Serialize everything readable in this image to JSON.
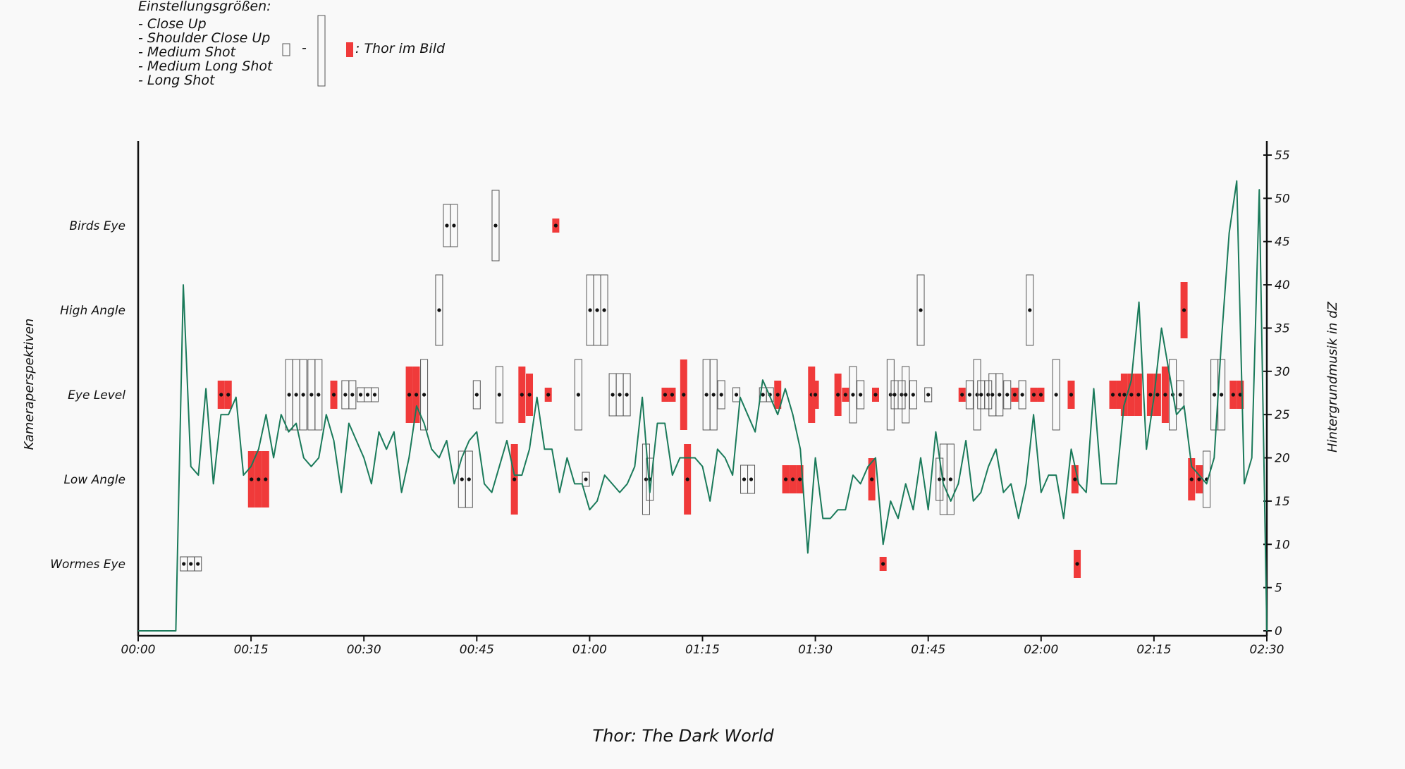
{
  "chart_data": {
    "type": "timeline+line",
    "title": "Thor: The Dark World",
    "ylabel_left": "Kameraperspektiven",
    "ylabel_right": "Hintergrundmusik in dZ",
    "categories": [
      "Wormes Eye",
      "Low Angle",
      "Eye Level",
      "High Angle",
      "Birds Eye"
    ],
    "x_ticks": [
      "00:00",
      "00:15",
      "00:30",
      "00:45",
      "01:00",
      "01:15",
      "01:30",
      "01:45",
      "02:00",
      "02:15",
      "02:30"
    ],
    "x_range_min": [
      0,
      150
    ],
    "y_right_range": [
      0,
      55
    ],
    "y_right_ticks": [
      0,
      5,
      10,
      15,
      20,
      25,
      30,
      35,
      40,
      45,
      50,
      55
    ],
    "legend": {
      "title": "Einstellungsgrößen:",
      "sizes": [
        "- Close Up",
        "- Shoulder Close Up",
        "- Medium Shot",
        "- Medium Long Shot",
        "- Long Shot"
      ],
      "dash": "-",
      "thor_label": ": Thor im Bild"
    },
    "colors": {
      "thor": "#f03a3a",
      "music": "#1a7a5a",
      "box_stroke": "#555555",
      "axis": "#111111"
    },
    "size_scale": {
      "1": "Close Up",
      "2": "Shoulder Close Up",
      "3": "Medium Shot",
      "4": "Medium Long Shot",
      "5": "Long Shot"
    },
    "shots": [
      {
        "t": 7.0,
        "cat": "Wormes Eye",
        "size": 1,
        "n": 3,
        "thor": false
      },
      {
        "t": 11.5,
        "cat": "Eye Level",
        "size": 2,
        "n": 2,
        "thor": true
      },
      {
        "t": 16.0,
        "cat": "Low Angle",
        "size": 4,
        "n": 3,
        "thor": true
      },
      {
        "t": 21.0,
        "cat": "Eye Level",
        "size": 5,
        "n": 3,
        "thor": false
      },
      {
        "t": 23.5,
        "cat": "Eye Level",
        "size": 5,
        "n": 2,
        "thor": false
      },
      {
        "t": 26.0,
        "cat": "Eye Level",
        "size": 2,
        "n": 1,
        "thor": true
      },
      {
        "t": 28.0,
        "cat": "Eye Level",
        "size": 2,
        "n": 2,
        "thor": false
      },
      {
        "t": 30.5,
        "cat": "Eye Level",
        "size": 1,
        "n": 3,
        "thor": false
      },
      {
        "t": 36.5,
        "cat": "Eye Level",
        "size": 4,
        "n": 2,
        "thor": true
      },
      {
        "t": 38.0,
        "cat": "Eye Level",
        "size": 5,
        "n": 1,
        "thor": false
      },
      {
        "t": 40.0,
        "cat": "High Angle",
        "size": 5,
        "n": 1,
        "thor": false
      },
      {
        "t": 41.5,
        "cat": "Birds Eye",
        "size": 3,
        "n": 2,
        "thor": false
      },
      {
        "t": 43.5,
        "cat": "Low Angle",
        "size": 4,
        "n": 2,
        "thor": false
      },
      {
        "t": 45.0,
        "cat": "Eye Level",
        "size": 2,
        "n": 1,
        "thor": false
      },
      {
        "t": 47.5,
        "cat": "Birds Eye",
        "size": 5,
        "n": 1,
        "thor": false
      },
      {
        "t": 48.0,
        "cat": "Eye Level",
        "size": 4,
        "n": 1,
        "thor": false
      },
      {
        "t": 50.0,
        "cat": "Low Angle",
        "size": 5,
        "n": 1,
        "thor": true
      },
      {
        "t": 51.0,
        "cat": "Eye Level",
        "size": 4,
        "n": 1,
        "thor": true
      },
      {
        "t": 52.0,
        "cat": "Eye Level",
        "size": 3,
        "n": 1,
        "thor": true
      },
      {
        "t": 54.5,
        "cat": "Eye Level",
        "size": 1,
        "n": 1,
        "thor": true
      },
      {
        "t": 55.5,
        "cat": "Birds Eye",
        "size": 1,
        "n": 1,
        "thor": true
      },
      {
        "t": 58.5,
        "cat": "Eye Level",
        "size": 5,
        "n": 1,
        "thor": false
      },
      {
        "t": 59.5,
        "cat": "Low Angle",
        "size": 1,
        "n": 1,
        "thor": false
      },
      {
        "t": 61.0,
        "cat": "High Angle",
        "size": 5,
        "n": 3,
        "thor": false
      },
      {
        "t": 64.0,
        "cat": "Eye Level",
        "size": 3,
        "n": 3,
        "thor": false
      },
      {
        "t": 67.5,
        "cat": "Low Angle",
        "size": 5,
        "n": 1,
        "thor": false
      },
      {
        "t": 68.0,
        "cat": "Low Angle",
        "size": 3,
        "n": 1,
        "thor": false
      },
      {
        "t": 70.5,
        "cat": "Eye Level",
        "size": 1,
        "n": 2,
        "thor": true
      },
      {
        "t": 72.5,
        "cat": "Eye Level",
        "size": 5,
        "n": 1,
        "thor": true
      },
      {
        "t": 73.0,
        "cat": "Low Angle",
        "size": 5,
        "n": 1,
        "thor": true
      },
      {
        "t": 76.0,
        "cat": "Eye Level",
        "size": 5,
        "n": 2,
        "thor": false
      },
      {
        "t": 77.5,
        "cat": "Eye Level",
        "size": 2,
        "n": 1,
        "thor": false
      },
      {
        "t": 79.5,
        "cat": "Eye Level",
        "size": 1,
        "n": 1,
        "thor": false
      },
      {
        "t": 81.0,
        "cat": "Low Angle",
        "size": 2,
        "n": 2,
        "thor": false
      },
      {
        "t": 83.5,
        "cat": "Eye Level",
        "size": 1,
        "n": 2,
        "thor": false
      },
      {
        "t": 85.0,
        "cat": "Eye Level",
        "size": 2,
        "n": 1,
        "thor": true
      },
      {
        "t": 87.0,
        "cat": "Low Angle",
        "size": 2,
        "n": 3,
        "thor": true
      },
      {
        "t": 89.5,
        "cat": "Eye Level",
        "size": 4,
        "n": 1,
        "thor": true
      },
      {
        "t": 90.0,
        "cat": "Eye Level",
        "size": 2,
        "n": 1,
        "thor": true
      },
      {
        "t": 93.0,
        "cat": "Eye Level",
        "size": 3,
        "n": 1,
        "thor": true
      },
      {
        "t": 94.0,
        "cat": "Eye Level",
        "size": 1,
        "n": 1,
        "thor": true
      },
      {
        "t": 95.0,
        "cat": "Eye Level",
        "size": 4,
        "n": 1,
        "thor": false
      },
      {
        "t": 96.0,
        "cat": "Eye Level",
        "size": 2,
        "n": 1,
        "thor": false
      },
      {
        "t": 98.0,
        "cat": "Eye Level",
        "size": 1,
        "n": 1,
        "thor": true
      },
      {
        "t": 97.5,
        "cat": "Low Angle",
        "size": 3,
        "n": 1,
        "thor": true
      },
      {
        "t": 99.0,
        "cat": "Wormes Eye",
        "size": 1,
        "n": 1,
        "thor": true
      },
      {
        "t": 100.0,
        "cat": "Eye Level",
        "size": 5,
        "n": 1,
        "thor": false
      },
      {
        "t": 101.0,
        "cat": "Eye Level",
        "size": 2,
        "n": 2,
        "thor": false
      },
      {
        "t": 102.0,
        "cat": "Eye Level",
        "size": 4,
        "n": 1,
        "thor": false
      },
      {
        "t": 103.0,
        "cat": "Eye Level",
        "size": 2,
        "n": 1,
        "thor": false
      },
      {
        "t": 104.0,
        "cat": "High Angle",
        "size": 5,
        "n": 1,
        "thor": false
      },
      {
        "t": 105.0,
        "cat": "Eye Level",
        "size": 1,
        "n": 1,
        "thor": false
      },
      {
        "t": 106.5,
        "cat": "Low Angle",
        "size": 3,
        "n": 1,
        "thor": false
      },
      {
        "t": 107.5,
        "cat": "Low Angle",
        "size": 5,
        "n": 2,
        "thor": false
      },
      {
        "t": 109.5,
        "cat": "Eye Level",
        "size": 1,
        "n": 1,
        "thor": true
      },
      {
        "t": 110.5,
        "cat": "Eye Level",
        "size": 2,
        "n": 1,
        "thor": false
      },
      {
        "t": 111.5,
        "cat": "Eye Level",
        "size": 5,
        "n": 1,
        "thor": false
      },
      {
        "t": 112.5,
        "cat": "Eye Level",
        "size": 2,
        "n": 2,
        "thor": false
      },
      {
        "t": 114.0,
        "cat": "Eye Level",
        "size": 3,
        "n": 2,
        "thor": false
      },
      {
        "t": 115.5,
        "cat": "Eye Level",
        "size": 2,
        "n": 1,
        "thor": false
      },
      {
        "t": 116.5,
        "cat": "Eye Level",
        "size": 1,
        "n": 1,
        "thor": true
      },
      {
        "t": 117.5,
        "cat": "Eye Level",
        "size": 2,
        "n": 1,
        "thor": false
      },
      {
        "t": 118.5,
        "cat": "High Angle",
        "size": 5,
        "n": 1,
        "thor": false
      },
      {
        "t": 119.5,
        "cat": "Eye Level",
        "size": 1,
        "n": 2,
        "thor": true
      },
      {
        "t": 122.0,
        "cat": "Eye Level",
        "size": 5,
        "n": 1,
        "thor": false
      },
      {
        "t": 124.0,
        "cat": "Eye Level",
        "size": 2,
        "n": 1,
        "thor": true
      },
      {
        "t": 124.5,
        "cat": "Low Angle",
        "size": 2,
        "n": 1,
        "thor": true
      },
      {
        "t": 124.8,
        "cat": "Wormes Eye",
        "size": 2,
        "n": 1,
        "thor": true
      },
      {
        "t": 130.0,
        "cat": "Eye Level",
        "size": 2,
        "n": 2,
        "thor": true
      },
      {
        "t": 132.0,
        "cat": "Eye Level",
        "size": 3,
        "n": 3,
        "thor": true
      },
      {
        "t": 135.0,
        "cat": "Eye Level",
        "size": 3,
        "n": 2,
        "thor": true
      },
      {
        "t": 136.5,
        "cat": "Eye Level",
        "size": 4,
        "n": 1,
        "thor": true
      },
      {
        "t": 137.5,
        "cat": "Eye Level",
        "size": 5,
        "n": 1,
        "thor": false
      },
      {
        "t": 138.5,
        "cat": "Eye Level",
        "size": 2,
        "n": 1,
        "thor": false
      },
      {
        "t": 139.0,
        "cat": "High Angle",
        "size": 4,
        "n": 1,
        "thor": true
      },
      {
        "t": 140.0,
        "cat": "Low Angle",
        "size": 3,
        "n": 1,
        "thor": true
      },
      {
        "t": 141.0,
        "cat": "Low Angle",
        "size": 2,
        "n": 1,
        "thor": true
      },
      {
        "t": 142.0,
        "cat": "Low Angle",
        "size": 4,
        "n": 1,
        "thor": false
      },
      {
        "t": 143.5,
        "cat": "Eye Level",
        "size": 5,
        "n": 2,
        "thor": false
      },
      {
        "t": 146.0,
        "cat": "Eye Level",
        "size": 2,
        "n": 2,
        "thor": true
      }
    ],
    "music": [
      {
        "t": 0,
        "v": 0
      },
      {
        "t": 5,
        "v": 0
      },
      {
        "t": 6,
        "v": 40
      },
      {
        "t": 7,
        "v": 19
      },
      {
        "t": 8,
        "v": 18
      },
      {
        "t": 9,
        "v": 28
      },
      {
        "t": 10,
        "v": 17
      },
      {
        "t": 11,
        "v": 25
      },
      {
        "t": 12,
        "v": 25
      },
      {
        "t": 13,
        "v": 27
      },
      {
        "t": 14,
        "v": 18
      },
      {
        "t": 15,
        "v": 19
      },
      {
        "t": 16,
        "v": 21
      },
      {
        "t": 17,
        "v": 25
      },
      {
        "t": 18,
        "v": 20
      },
      {
        "t": 19,
        "v": 25
      },
      {
        "t": 20,
        "v": 23
      },
      {
        "t": 21,
        "v": 24
      },
      {
        "t": 22,
        "v": 20
      },
      {
        "t": 23,
        "v": 19
      },
      {
        "t": 24,
        "v": 20
      },
      {
        "t": 25,
        "v": 25
      },
      {
        "t": 26,
        "v": 22
      },
      {
        "t": 27,
        "v": 16
      },
      {
        "t": 28,
        "v": 24
      },
      {
        "t": 29,
        "v": 22
      },
      {
        "t": 30,
        "v": 20
      },
      {
        "t": 31,
        "v": 17
      },
      {
        "t": 32,
        "v": 23
      },
      {
        "t": 33,
        "v": 21
      },
      {
        "t": 34,
        "v": 23
      },
      {
        "t": 35,
        "v": 16
      },
      {
        "t": 36,
        "v": 20
      },
      {
        "t": 37,
        "v": 26
      },
      {
        "t": 38,
        "v": 24
      },
      {
        "t": 39,
        "v": 21
      },
      {
        "t": 40,
        "v": 20
      },
      {
        "t": 41,
        "v": 22
      },
      {
        "t": 42,
        "v": 17
      },
      {
        "t": 43,
        "v": 20
      },
      {
        "t": 44,
        "v": 22
      },
      {
        "t": 45,
        "v": 23
      },
      {
        "t": 46,
        "v": 17
      },
      {
        "t": 47,
        "v": 16
      },
      {
        "t": 48,
        "v": 19
      },
      {
        "t": 49,
        "v": 22
      },
      {
        "t": 50,
        "v": 18
      },
      {
        "t": 51,
        "v": 18
      },
      {
        "t": 52,
        "v": 21
      },
      {
        "t": 53,
        "v": 27
      },
      {
        "t": 54,
        "v": 21
      },
      {
        "t": 55,
        "v": 21
      },
      {
        "t": 56,
        "v": 16
      },
      {
        "t": 57,
        "v": 20
      },
      {
        "t": 58,
        "v": 17
      },
      {
        "t": 59,
        "v": 17
      },
      {
        "t": 60,
        "v": 14
      },
      {
        "t": 61,
        "v": 15
      },
      {
        "t": 62,
        "v": 18
      },
      {
        "t": 63,
        "v": 17
      },
      {
        "t": 64,
        "v": 16
      },
      {
        "t": 65,
        "v": 17
      },
      {
        "t": 66,
        "v": 19
      },
      {
        "t": 67,
        "v": 27
      },
      {
        "t": 68,
        "v": 16
      },
      {
        "t": 69,
        "v": 24
      },
      {
        "t": 70,
        "v": 24
      },
      {
        "t": 71,
        "v": 18
      },
      {
        "t": 72,
        "v": 20
      },
      {
        "t": 73,
        "v": 20
      },
      {
        "t": 74,
        "v": 20
      },
      {
        "t": 75,
        "v": 19
      },
      {
        "t": 76,
        "v": 15
      },
      {
        "t": 77,
        "v": 21
      },
      {
        "t": 78,
        "v": 20
      },
      {
        "t": 79,
        "v": 18
      },
      {
        "t": 80,
        "v": 27
      },
      {
        "t": 81,
        "v": 25
      },
      {
        "t": 82,
        "v": 23
      },
      {
        "t": 83,
        "v": 29
      },
      {
        "t": 84,
        "v": 27
      },
      {
        "t": 85,
        "v": 25
      },
      {
        "t": 86,
        "v": 28
      },
      {
        "t": 87,
        "v": 25
      },
      {
        "t": 88,
        "v": 21
      },
      {
        "t": 89,
        "v": 9
      },
      {
        "t": 90,
        "v": 20
      },
      {
        "t": 91,
        "v": 13
      },
      {
        "t": 92,
        "v": 13
      },
      {
        "t": 93,
        "v": 14
      },
      {
        "t": 94,
        "v": 14
      },
      {
        "t": 95,
        "v": 18
      },
      {
        "t": 96,
        "v": 17
      },
      {
        "t": 97,
        "v": 19
      },
      {
        "t": 98,
        "v": 20
      },
      {
        "t": 99,
        "v": 10
      },
      {
        "t": 100,
        "v": 15
      },
      {
        "t": 101,
        "v": 13
      },
      {
        "t": 102,
        "v": 17
      },
      {
        "t": 103,
        "v": 14
      },
      {
        "t": 104,
        "v": 20
      },
      {
        "t": 105,
        "v": 14
      },
      {
        "t": 106,
        "v": 23
      },
      {
        "t": 107,
        "v": 17
      },
      {
        "t": 108,
        "v": 15
      },
      {
        "t": 109,
        "v": 17
      },
      {
        "t": 110,
        "v": 22
      },
      {
        "t": 111,
        "v": 15
      },
      {
        "t": 112,
        "v": 16
      },
      {
        "t": 113,
        "v": 19
      },
      {
        "t": 114,
        "v": 21
      },
      {
        "t": 115,
        "v": 16
      },
      {
        "t": 116,
        "v": 17
      },
      {
        "t": 117,
        "v": 13
      },
      {
        "t": 118,
        "v": 17
      },
      {
        "t": 119,
        "v": 25
      },
      {
        "t": 120,
        "v": 16
      },
      {
        "t": 121,
        "v": 18
      },
      {
        "t": 122,
        "v": 18
      },
      {
        "t": 123,
        "v": 13
      },
      {
        "t": 124,
        "v": 21
      },
      {
        "t": 125,
        "v": 17
      },
      {
        "t": 126,
        "v": 16
      },
      {
        "t": 127,
        "v": 28
      },
      {
        "t": 128,
        "v": 17
      },
      {
        "t": 129,
        "v": 17
      },
      {
        "t": 130,
        "v": 17
      },
      {
        "t": 131,
        "v": 26
      },
      {
        "t": 132,
        "v": 29
      },
      {
        "t": 133,
        "v": 38
      },
      {
        "t": 134,
        "v": 21
      },
      {
        "t": 135,
        "v": 27
      },
      {
        "t": 136,
        "v": 35
      },
      {
        "t": 137,
        "v": 30
      },
      {
        "t": 138,
        "v": 25
      },
      {
        "t": 139,
        "v": 26
      },
      {
        "t": 140,
        "v": 19
      },
      {
        "t": 141,
        "v": 18
      },
      {
        "t": 142,
        "v": 17
      },
      {
        "t": 143,
        "v": 20
      },
      {
        "t": 144,
        "v": 34
      },
      {
        "t": 145,
        "v": 46
      },
      {
        "t": 146,
        "v": 52
      },
      {
        "t": 147,
        "v": 17
      },
      {
        "t": 148,
        "v": 20
      },
      {
        "t": 149,
        "v": 51
      },
      {
        "t": 150,
        "v": 0
      }
    ]
  }
}
